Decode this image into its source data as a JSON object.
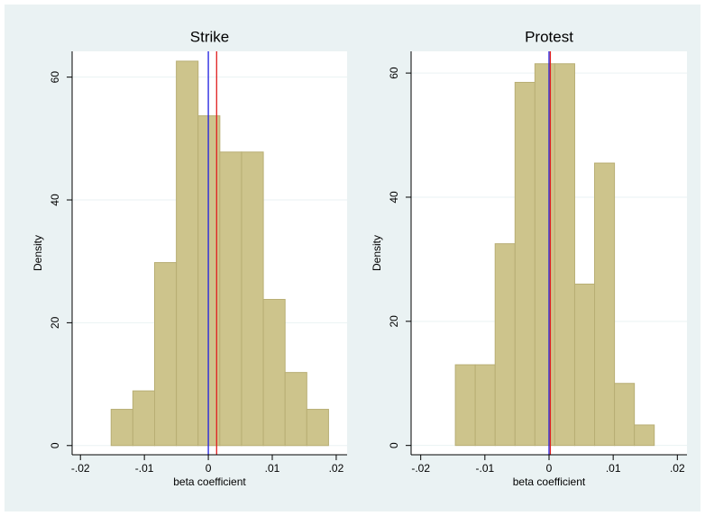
{
  "chart_data": [
    {
      "type": "histogram",
      "title": "Strike",
      "xlabel": "beta coefficient",
      "ylabel": "Density",
      "bins": [
        -0.0152,
        -0.0118,
        -0.0084,
        -0.005,
        -0.0016,
        0.0018,
        0.0052,
        0.0086,
        0.012,
        0.0154,
        0.0188
      ],
      "values": [
        5.9,
        8.9,
        29.8,
        62.6,
        53.7,
        47.8,
        47.8,
        23.8,
        11.9,
        5.9
      ],
      "color": "#cdc48c",
      "edgecolor": "#b8ae74",
      "xlim": [
        -0.0213,
        0.0217
      ],
      "ylim": [
        -1.5,
        64.2
      ],
      "xticks": [
        {
          "value": -0.02,
          "label": "-.02"
        },
        {
          "value": -0.01,
          "label": "-.01"
        },
        0,
        {
          "value": 0.01,
          "label": ".01"
        },
        {
          "value": 0.02,
          "label": ".02"
        }
      ],
      "yticks": [
        0,
        20,
        40,
        60
      ],
      "grid": true,
      "vlines": [
        {
          "value": 0,
          "color": "#1f1fe0"
        },
        {
          "value": 0.0013,
          "color": "#e01f1f"
        }
      ]
    },
    {
      "type": "histogram",
      "title": "Protest",
      "xlabel": "beta coefficient",
      "ylabel": "Density",
      "bins": [
        -0.0146,
        -0.0115,
        -0.0084,
        -0.0053,
        -0.0022,
        0.0009,
        0.004,
        0.0071,
        0.0102,
        0.0133,
        0.0164
      ],
      "values": [
        13,
        13,
        32.5,
        58.5,
        61.5,
        61.5,
        26,
        45.5,
        10,
        3.3
      ],
      "color": "#cdc48c",
      "edgecolor": "#b8ae74",
      "xlim": [
        -0.0215,
        0.0215
      ],
      "ylim": [
        -1.5,
        63.5
      ],
      "xticks": [
        {
          "value": -0.02,
          "label": "-.02"
        },
        {
          "value": -0.01,
          "label": "-.01"
        },
        0,
        {
          "value": 0.01,
          "label": ".01"
        },
        {
          "value": 0.02,
          "label": ".02"
        }
      ],
      "yticks": [
        0,
        20,
        40,
        60
      ],
      "grid": true,
      "vlines": [
        {
          "value": 0,
          "color": "#1f1fe0"
        },
        {
          "value": 0.0002,
          "color": "#e01f1f"
        }
      ]
    }
  ]
}
